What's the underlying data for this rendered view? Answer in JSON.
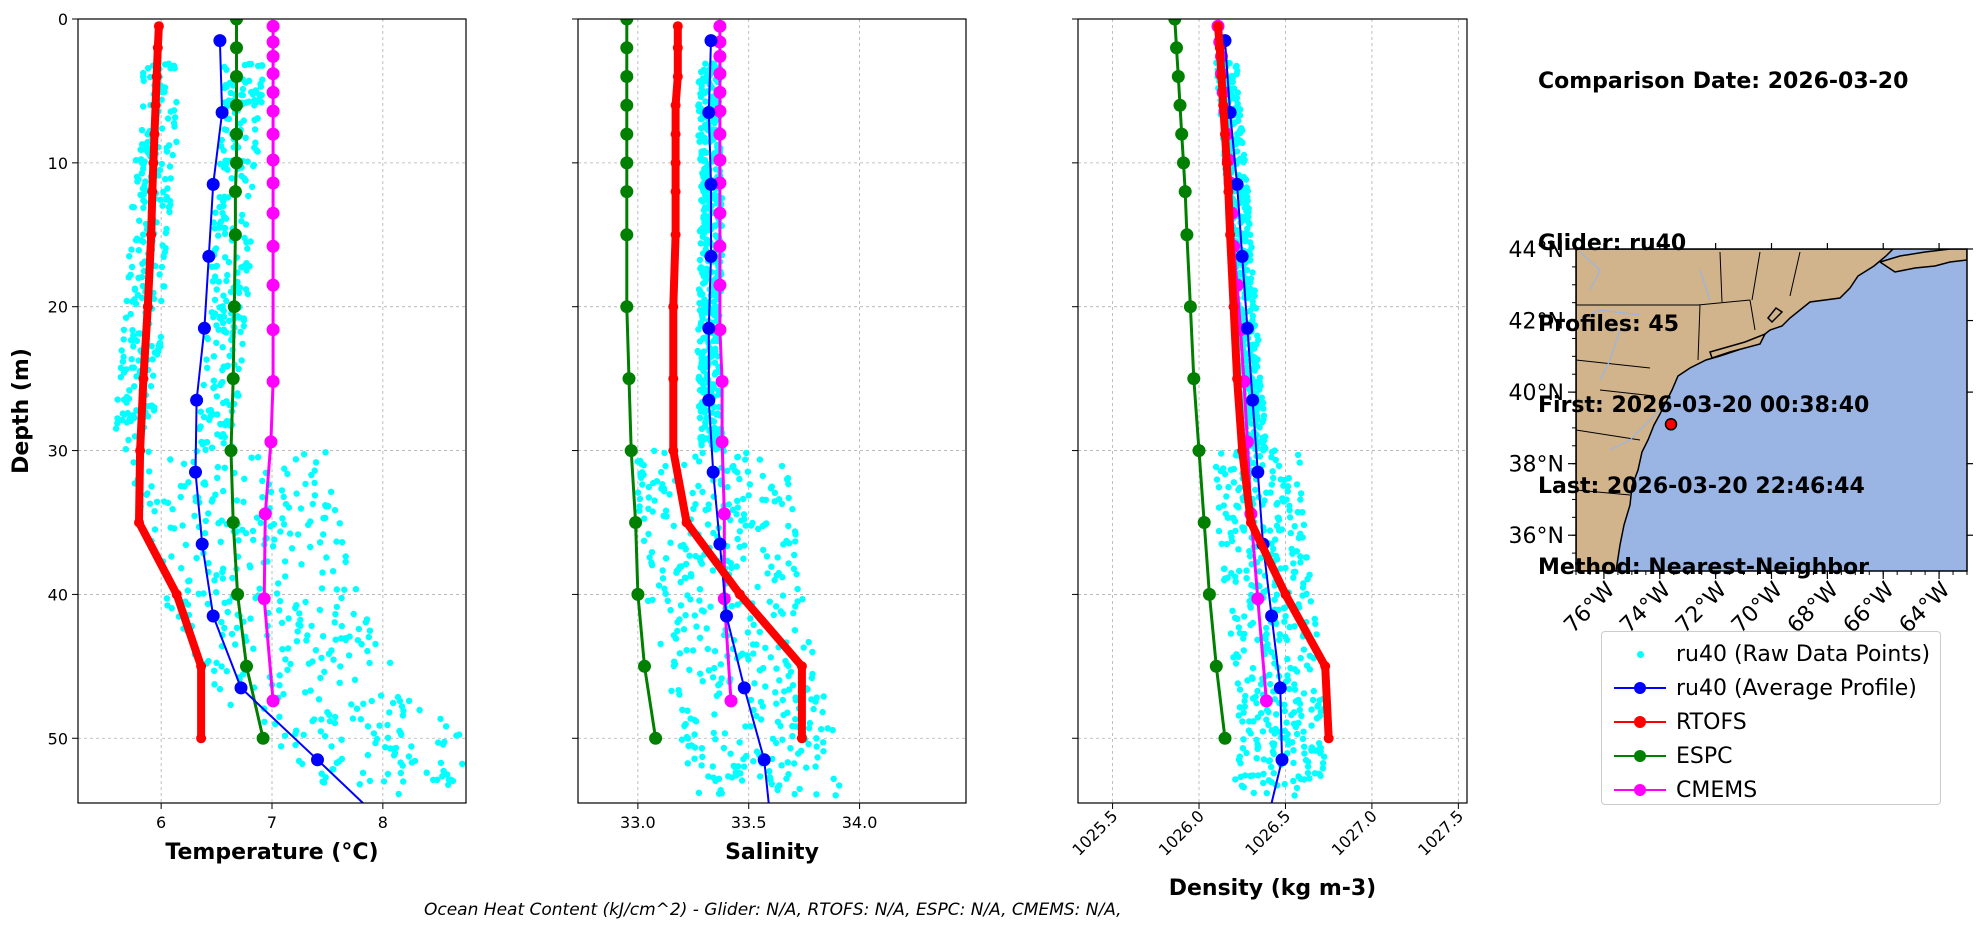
{
  "info": {
    "comparison_date": "Comparison Date: 2026-03-20",
    "glider": "Glider: ru40",
    "profiles": "Profiles: 45",
    "first": "First: 2026-03-20 00:38:40",
    "last": "Last: 2026-03-20 22:46:44",
    "method": "Method: Nearest-Neighbor"
  },
  "footer": "Ocean Heat Content (kJ/cm^2) - Glider: N/A,  RTOFS: N/A,  ESPC: N/A,  CMEMS: N/A,",
  "legend": [
    {
      "label": "ru40 (Raw Data Points)",
      "color": "#00ffff",
      "style": "points"
    },
    {
      "label": "ru40 (Average Profile)",
      "color": "#0000ff",
      "style": "line-marker"
    },
    {
      "label": "RTOFS",
      "color": "#ff0000",
      "style": "line-marker"
    },
    {
      "label": "ESPC",
      "color": "#008000",
      "style": "line-marker"
    },
    {
      "label": "CMEMS",
      "color": "#ff00ff",
      "style": "line-marker"
    }
  ],
  "chart_data": [
    {
      "type": "line",
      "xlabel": "Temperature (°C)",
      "ylabel": "Depth (m)",
      "xlim": [
        5.25,
        8.75
      ],
      "ylim": [
        54.5,
        0
      ],
      "xticks": [
        "6",
        "7",
        "8"
      ],
      "yticks": [
        "0",
        "10",
        "20",
        "30",
        "40",
        "50"
      ],
      "grid": true,
      "series": [
        {
          "name": "ru40 (Average Profile)",
          "color": "#0000ff",
          "depth": [
            1.5,
            6.5,
            11.5,
            16.5,
            21.5,
            26.5,
            31.5,
            36.5,
            41.5,
            46.5,
            51.5,
            54.5
          ],
          "values": [
            6.53,
            6.55,
            6.47,
            6.43,
            6.39,
            6.32,
            6.31,
            6.37,
            6.47,
            6.72,
            7.41,
            7.82
          ]
        },
        {
          "name": "RTOFS",
          "color": "#ff0000",
          "depth": [
            0.5,
            2,
            4,
            6,
            8,
            10,
            12,
            15,
            20,
            25,
            30,
            35,
            40,
            45,
            50
          ],
          "values": [
            5.98,
            5.97,
            5.96,
            5.95,
            5.94,
            5.93,
            5.92,
            5.91,
            5.88,
            5.84,
            5.81,
            5.8,
            6.14,
            6.36,
            6.36
          ]
        },
        {
          "name": "ESPC",
          "color": "#008000",
          "depth": [
            0,
            2,
            4,
            6,
            8,
            10,
            12,
            15,
            20,
            25,
            30,
            35,
            40,
            45,
            50
          ],
          "values": [
            6.68,
            6.68,
            6.68,
            6.68,
            6.68,
            6.68,
            6.67,
            6.67,
            6.66,
            6.65,
            6.63,
            6.65,
            6.69,
            6.77,
            6.92
          ]
        },
        {
          "name": "CMEMS",
          "color": "#ff00ff",
          "depth": [
            0.5,
            1.6,
            2.6,
            3.8,
            5.1,
            6.4,
            8.0,
            9.8,
            11.4,
            13.5,
            15.8,
            18.5,
            21.6,
            25.2,
            29.4,
            34.4,
            40.3,
            47.4
          ],
          "values": [
            7.01,
            7.01,
            7.01,
            7.01,
            7.01,
            7.01,
            7.01,
            7.01,
            7.01,
            7.01,
            7.01,
            7.01,
            7.01,
            7.01,
            6.99,
            6.94,
            6.93,
            7.01
          ]
        }
      ]
    },
    {
      "type": "line",
      "xlabel": "Salinity",
      "ylabel": "",
      "xlim": [
        32.73,
        34.48
      ],
      "ylim": [
        54.5,
        0
      ],
      "xticks": [
        "33.0",
        "33.5",
        "34.0"
      ],
      "grid": true,
      "series": [
        {
          "name": "ru40 (Average Profile)",
          "color": "#0000ff",
          "depth": [
            1.5,
            6.5,
            11.5,
            16.5,
            21.5,
            26.5,
            31.5,
            36.5,
            41.5,
            46.5,
            51.5,
            54.5
          ],
          "values": [
            33.33,
            33.32,
            33.33,
            33.33,
            33.32,
            33.32,
            33.34,
            33.37,
            33.4,
            33.48,
            33.57,
            33.59
          ]
        },
        {
          "name": "RTOFS",
          "color": "#ff0000",
          "depth": [
            0.5,
            2,
            4,
            6,
            8,
            10,
            12,
            15,
            20,
            25,
            30,
            35,
            40,
            45,
            50
          ],
          "values": [
            33.18,
            33.18,
            33.18,
            33.17,
            33.17,
            33.17,
            33.17,
            33.17,
            33.16,
            33.16,
            33.16,
            33.22,
            33.46,
            33.74,
            33.74
          ]
        },
        {
          "name": "ESPC",
          "color": "#008000",
          "depth": [
            0,
            2,
            4,
            6,
            8,
            10,
            12,
            15,
            20,
            25,
            30,
            35,
            40,
            45,
            50
          ],
          "values": [
            32.95,
            32.95,
            32.95,
            32.95,
            32.95,
            32.95,
            32.95,
            32.95,
            32.95,
            32.96,
            32.97,
            32.99,
            33.0,
            33.03,
            33.08
          ]
        },
        {
          "name": "CMEMS",
          "color": "#ff00ff",
          "depth": [
            0.5,
            1.6,
            2.6,
            3.8,
            5.1,
            6.4,
            8.0,
            9.8,
            11.4,
            13.5,
            15.8,
            18.5,
            21.6,
            25.2,
            29.4,
            34.4,
            40.3,
            47.4
          ],
          "values": [
            33.37,
            33.37,
            33.37,
            33.37,
            33.37,
            33.37,
            33.37,
            33.37,
            33.37,
            33.37,
            33.37,
            33.37,
            33.37,
            33.38,
            33.38,
            33.39,
            33.39,
            33.42
          ]
        }
      ]
    },
    {
      "type": "line",
      "xlabel": "Density (kg m-3)",
      "ylabel": "",
      "xlim": [
        1025.3,
        1027.55
      ],
      "ylim": [
        54.5,
        0
      ],
      "xticks": [
        "1025.5",
        "1026.0",
        "1026.5",
        "1027.0",
        "1027.5"
      ],
      "grid": true,
      "series": [
        {
          "name": "ru40 (Average Profile)",
          "color": "#0000ff",
          "depth": [
            1.5,
            6.5,
            11.5,
            16.5,
            21.5,
            26.5,
            31.5,
            36.5,
            41.5,
            46.5,
            51.5,
            54.5
          ],
          "values": [
            1026.15,
            1026.18,
            1026.22,
            1026.25,
            1026.28,
            1026.31,
            1026.34,
            1026.37,
            1026.42,
            1026.47,
            1026.48,
            1026.42
          ]
        },
        {
          "name": "RTOFS",
          "color": "#ff0000",
          "depth": [
            0.5,
            2,
            4,
            6,
            8,
            10,
            12,
            15,
            20,
            25,
            30,
            35,
            40,
            45,
            50
          ],
          "values": [
            1026.11,
            1026.12,
            1026.13,
            1026.14,
            1026.15,
            1026.16,
            1026.17,
            1026.18,
            1026.2,
            1026.22,
            1026.25,
            1026.3,
            1026.5,
            1026.73,
            1026.75
          ]
        },
        {
          "name": "ESPC",
          "color": "#008000",
          "depth": [
            0,
            2,
            4,
            6,
            8,
            10,
            12,
            15,
            20,
            25,
            30,
            35,
            40,
            45,
            50
          ],
          "values": [
            1025.86,
            1025.87,
            1025.88,
            1025.89,
            1025.9,
            1025.91,
            1025.92,
            1025.93,
            1025.95,
            1025.97,
            1026.0,
            1026.03,
            1026.06,
            1026.1,
            1026.15
          ]
        },
        {
          "name": "CMEMS",
          "color": "#ff00ff",
          "depth": [
            0.5,
            1.6,
            2.6,
            3.8,
            5.1,
            6.4,
            8.0,
            9.8,
            11.4,
            13.5,
            15.8,
            18.5,
            21.6,
            25.2,
            29.4,
            34.4,
            40.3,
            47.4
          ],
          "values": [
            1026.11,
            1026.12,
            1026.13,
            1026.13,
            1026.14,
            1026.15,
            1026.16,
            1026.17,
            1026.18,
            1026.19,
            1026.2,
            1026.22,
            1026.24,
            1026.26,
            1026.28,
            1026.3,
            1026.34,
            1026.39
          ]
        }
      ]
    },
    {
      "type": "map",
      "lat_ticks": [
        "44°N",
        "42°N",
        "40°N",
        "38°N",
        "36°N"
      ],
      "lon_ticks": [
        "76°W",
        "74°W",
        "72°W",
        "70°W",
        "68°W",
        "66°W",
        "64°W"
      ],
      "lat_range": [
        35,
        44
      ],
      "lon_range": [
        -77,
        -63
      ],
      "ocean_color": "#9ab5e3",
      "land_color": "#d2b48c",
      "glider_position": {
        "lat": 39.1,
        "lon": -73.6,
        "color": "#ff0000"
      }
    }
  ]
}
